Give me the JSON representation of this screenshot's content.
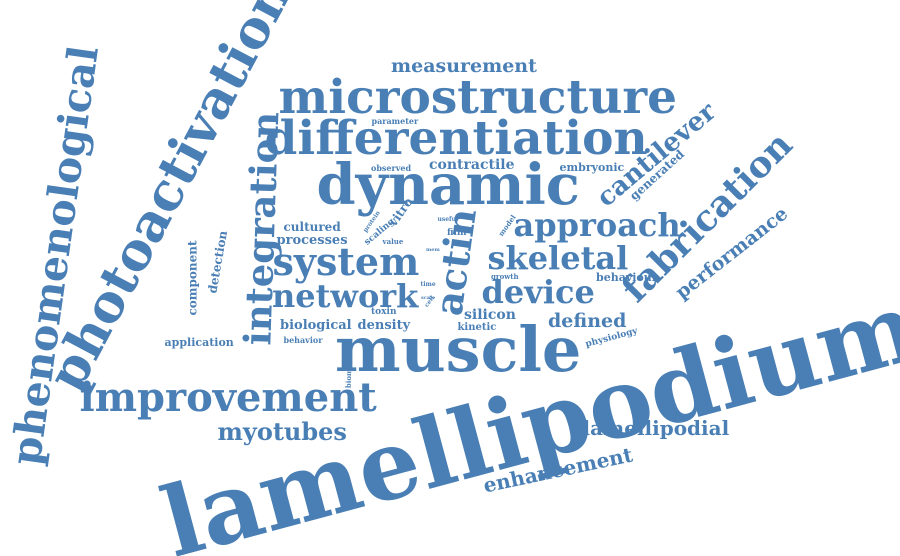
{
  "cloud": {
    "color": "#4a7fb5",
    "words": [
      {
        "text": "lamellipodium",
        "weight": 100
      },
      {
        "text": "muscle",
        "weight": 70
      },
      {
        "text": "photoactivation",
        "weight": 60
      },
      {
        "text": "dynamic",
        "weight": 58
      },
      {
        "text": "microstructure",
        "weight": 52
      },
      {
        "text": "differentiation",
        "weight": 52
      },
      {
        "text": "phenomenological",
        "weight": 48
      },
      {
        "text": "improvement",
        "weight": 46
      },
      {
        "text": "fabrication",
        "weight": 44
      },
      {
        "text": "system",
        "weight": 44
      },
      {
        "text": "actin",
        "weight": 44
      },
      {
        "text": "integration",
        "weight": 42
      },
      {
        "text": "approach",
        "weight": 38
      },
      {
        "text": "network",
        "weight": 38
      },
      {
        "text": "device",
        "weight": 38
      },
      {
        "text": "skeletal",
        "weight": 38
      },
      {
        "text": "cantilever",
        "weight": 30
      },
      {
        "text": "myotubes",
        "weight": 28
      },
      {
        "text": "lamellipodial",
        "weight": 24
      },
      {
        "text": "enhancement",
        "weight": 24
      },
      {
        "text": "measurement",
        "weight": 22
      },
      {
        "text": "performance",
        "weight": 22
      },
      {
        "text": "defined",
        "weight": 22
      },
      {
        "text": "contractile",
        "weight": 16
      },
      {
        "text": "silicon",
        "weight": 16
      },
      {
        "text": "processes",
        "weight": 15
      },
      {
        "text": "biological",
        "weight": 15
      },
      {
        "text": "density",
        "weight": 15
      },
      {
        "text": "cultured",
        "weight": 14
      },
      {
        "text": "vitro",
        "weight": 14
      },
      {
        "text": "generated",
        "weight": 14
      },
      {
        "text": "detection",
        "weight": 14
      },
      {
        "text": "component",
        "weight": 14
      },
      {
        "text": "embryonic",
        "weight": 12
      },
      {
        "text": "behaviour",
        "weight": 12
      },
      {
        "text": "application",
        "weight": 12
      },
      {
        "text": "kinetic",
        "weight": 11
      },
      {
        "text": "toxin",
        "weight": 11
      },
      {
        "text": "physiology",
        "weight": 10
      },
      {
        "text": "scaling",
        "weight": 10
      },
      {
        "text": "film",
        "weight": 10
      },
      {
        "text": "parameter",
        "weight": 9
      },
      {
        "text": "observed",
        "weight": 9
      },
      {
        "text": "behavior",
        "weight": 9
      },
      {
        "text": "model",
        "weight": 8
      },
      {
        "text": "biomems",
        "weight": 8
      },
      {
        "text": "value",
        "weight": 8
      },
      {
        "text": "growth",
        "weight": 7
      },
      {
        "text": "protein",
        "weight": 7
      },
      {
        "text": "useful",
        "weight": 7
      },
      {
        "text": "time",
        "weight": 6
      },
      {
        "text": "str",
        "weight": 6
      },
      {
        "text": "cell",
        "weight": 6
      },
      {
        "text": "mem",
        "weight": 5
      },
      {
        "text": "scale",
        "weight": 5
      }
    ]
  }
}
